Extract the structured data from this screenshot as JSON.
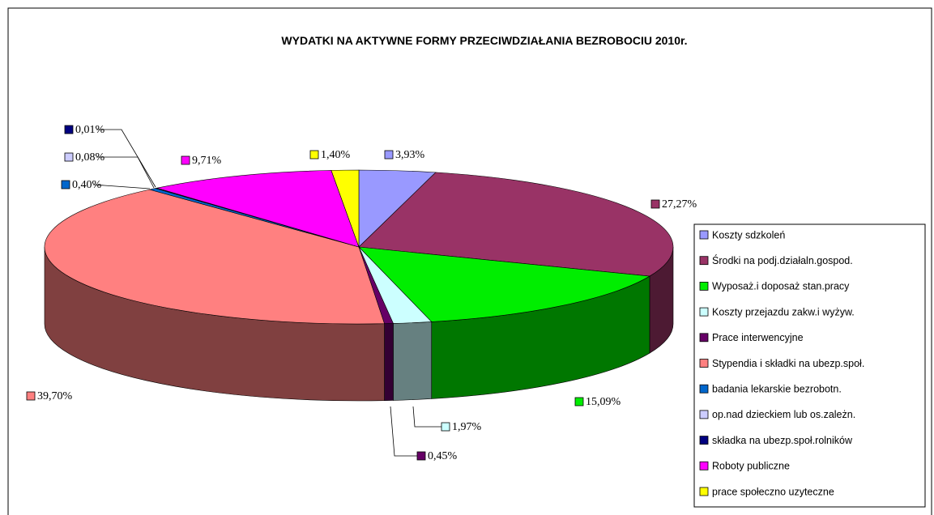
{
  "chart_data": {
    "type": "pie",
    "title": "WYDATKI  NA  AKTYWNE  FORMY  PRZECIWDZIAŁANIA  BEZROBOCIU  2010r.",
    "categories": [
      "Koszty sdzkoleń",
      "Środki na podj.działaln.gospod.",
      "Wyposaż.i doposaż stan.pracy",
      "Koszty przejazdu zakw.i wyżyw.",
      "Prace interwencyjne",
      "Stypendia i składki na ubezp.społ.",
      "badania lekarskie bezrobotn.",
      "op.nad dzieckiem lub os.zależn.",
      "składka na ubezp.społ.rolników",
      "Roboty publiczne",
      "prace społeczno uzyteczne"
    ],
    "values": [
      3.93,
      27.27,
      15.09,
      1.97,
      0.45,
      39.7,
      0.4,
      0.08,
      0.01,
      9.71,
      1.4
    ],
    "value_labels": [
      "3,93%",
      "27,27%",
      "15,09%",
      "1,97%",
      "0,45%",
      "39,70%",
      "0,40%",
      "0,08%",
      "0,01%",
      "9,71%",
      "1,40%"
    ],
    "colors": [
      "#9999ff",
      "#993366",
      "#00ee00",
      "#ccffff",
      "#660066",
      "#ff8080",
      "#0066cc",
      "#ccccff",
      "#000080",
      "#ff00ff",
      "#ffff00"
    ],
    "legend": "right"
  }
}
